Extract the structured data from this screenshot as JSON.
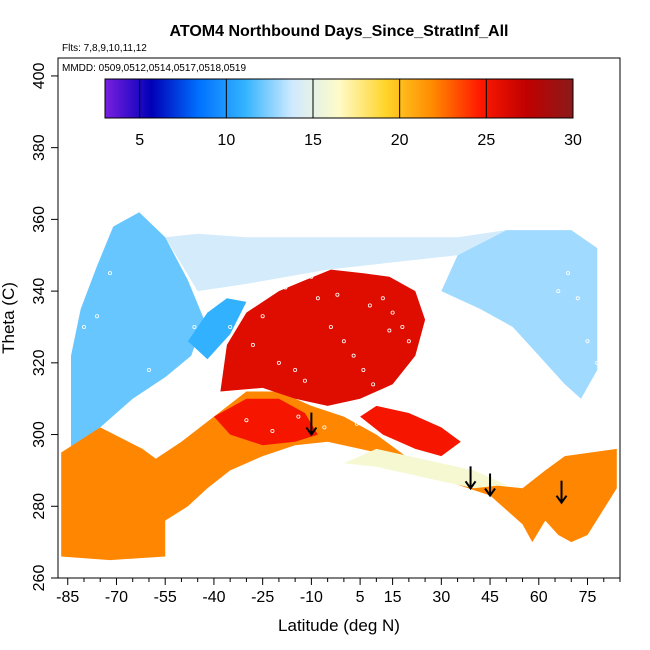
{
  "chart_data": {
    "type": "heatmap",
    "title": "ATOM4 Northbound Days_Since_StratInf_All",
    "subtitle_flights": "Flts: 7,8,9,10,11,12",
    "subtitle_dates": "MMDD: 0509,0512,0514,0517,0518,0519",
    "xlabel": "Latitude (deg N)",
    "ylabel": "Theta (C)",
    "xlim": [
      -88,
      85
    ],
    "ylim": [
      260,
      405
    ],
    "x_ticks": [
      -85,
      -70,
      -55,
      -40,
      -25,
      -10,
      5,
      15,
      30,
      45,
      60,
      75
    ],
    "x_tick_labels": [
      "-85",
      "-70",
      "-55",
      "-40",
      "-25",
      "-10",
      "5",
      "15",
      "30",
      "45",
      "60",
      "75"
    ],
    "y_ticks": [
      260,
      280,
      300,
      320,
      340,
      360,
      380,
      400
    ],
    "y_tick_labels": [
      "260",
      "280",
      "300",
      "320",
      "340",
      "360",
      "380",
      "400"
    ],
    "colorbar": {
      "range": [
        3,
        30
      ],
      "ticks": [
        5,
        10,
        15,
        20,
        25,
        30
      ],
      "tick_labels": [
        "5",
        "10",
        "15",
        "20",
        "25",
        "30"
      ],
      "colors": [
        "#7a1fe0",
        "#0000b8",
        "#0070ff",
        "#34b4ff",
        "#cfeaff",
        "#fffbc8",
        "#ffd42a",
        "#ff8a00",
        "#ff1a00",
        "#c00000",
        "#8b1a1a"
      ]
    },
    "arrows": [
      {
        "lat": -10,
        "theta": 300
      },
      {
        "lat": 39,
        "theta": 285
      },
      {
        "lat": 45,
        "theta": 283
      },
      {
        "lat": 67,
        "theta": 281
      }
    ],
    "regions": [
      {
        "name": "upper-left-blue",
        "value": 12,
        "points": [
          [
            -84,
            296
          ],
          [
            -84,
            322
          ],
          [
            -81,
            335
          ],
          [
            -76,
            347
          ],
          [
            -71,
            358
          ],
          [
            -63,
            362
          ],
          [
            -55,
            355
          ],
          [
            -48,
            343
          ],
          [
            -43,
            332
          ],
          [
            -47,
            322
          ],
          [
            -55,
            316
          ],
          [
            -65,
            310
          ],
          [
            -75,
            302
          ]
        ]
      },
      {
        "name": "upper-right-blue",
        "value": 13,
        "points": [
          [
            30,
            340
          ],
          [
            35,
            350
          ],
          [
            50,
            357
          ],
          [
            70,
            357
          ],
          [
            78,
            352
          ],
          [
            78,
            318
          ],
          [
            73,
            310
          ],
          [
            68,
            314
          ],
          [
            62,
            320
          ],
          [
            52,
            330
          ],
          [
            42,
            335
          ]
        ]
      },
      {
        "name": "top-band-light",
        "value": 14,
        "points": [
          [
            -55,
            355
          ],
          [
            -45,
            356
          ],
          [
            -30,
            355
          ],
          [
            0,
            355
          ],
          [
            35,
            355
          ],
          [
            50,
            357
          ],
          [
            35,
            350
          ],
          [
            -5,
            346
          ],
          [
            -30,
            342
          ],
          [
            -45,
            340
          ]
        ]
      },
      {
        "name": "left-low-orange",
        "value": 22,
        "points": [
          [
            -87,
            266
          ],
          [
            -87,
            295
          ],
          [
            -75,
            302
          ],
          [
            -62,
            296
          ],
          [
            -50,
            288
          ],
          [
            -42,
            285
          ],
          [
            -48,
            280
          ],
          [
            -55,
            276
          ],
          [
            -55,
            266
          ],
          [
            -72,
            265
          ]
        ]
      },
      {
        "name": "central-orange",
        "value": 22,
        "points": [
          [
            -60,
            292
          ],
          [
            -50,
            298
          ],
          [
            -40,
            305
          ],
          [
            -30,
            312
          ],
          [
            -20,
            312
          ],
          [
            -10,
            308
          ],
          [
            0,
            305
          ],
          [
            10,
            300
          ],
          [
            22,
            292
          ],
          [
            35,
            288
          ],
          [
            45,
            286
          ],
          [
            55,
            285
          ],
          [
            62,
            290
          ],
          [
            68,
            294
          ],
          [
            84,
            296
          ],
          [
            84,
            285
          ],
          [
            75,
            272
          ],
          [
            70,
            270
          ],
          [
            66,
            272
          ],
          [
            62,
            276
          ],
          [
            58,
            270
          ],
          [
            55,
            275
          ],
          [
            45,
            283
          ],
          [
            35,
            286
          ],
          [
            25,
            290
          ],
          [
            15,
            294
          ],
          [
            5,
            296
          ],
          [
            -5,
            298
          ],
          [
            -15,
            297
          ],
          [
            -25,
            294
          ],
          [
            -35,
            290
          ],
          [
            -42,
            285
          ],
          [
            -50,
            286
          ]
        ]
      },
      {
        "name": "upper-red",
        "value": 26,
        "points": [
          [
            -38,
            312
          ],
          [
            -36,
            325
          ],
          [
            -30,
            334
          ],
          [
            -20,
            340
          ],
          [
            -12,
            343
          ],
          [
            -4,
            346
          ],
          [
            6,
            345
          ],
          [
            14,
            344
          ],
          [
            22,
            340
          ],
          [
            25,
            332
          ],
          [
            22,
            322
          ],
          [
            15,
            314
          ],
          [
            5,
            310
          ],
          [
            -5,
            308
          ],
          [
            -15,
            310
          ],
          [
            -25,
            313
          ]
        ]
      },
      {
        "name": "lower-red-left",
        "value": 25,
        "points": [
          [
            -40,
            305
          ],
          [
            -35,
            300
          ],
          [
            -25,
            297
          ],
          [
            -15,
            298
          ],
          [
            -8,
            300
          ],
          [
            -12,
            306
          ],
          [
            -20,
            310
          ],
          [
            -30,
            310
          ]
        ]
      },
      {
        "name": "lower-red-right",
        "value": 25,
        "points": [
          [
            5,
            305
          ],
          [
            12,
            300
          ],
          [
            22,
            296
          ],
          [
            30,
            294
          ],
          [
            36,
            298
          ],
          [
            30,
            302
          ],
          [
            20,
            306
          ],
          [
            10,
            308
          ]
        ]
      },
      {
        "name": "mid-cyan-streak",
        "value": 11,
        "points": [
          [
            -48,
            326
          ],
          [
            -42,
            334
          ],
          [
            -36,
            338
          ],
          [
            -30,
            337
          ],
          [
            -35,
            328
          ],
          [
            -42,
            321
          ]
        ]
      },
      {
        "name": "tropical-cyan-gap",
        "value": 16,
        "points": [
          [
            0,
            292
          ],
          [
            10,
            291
          ],
          [
            20,
            289
          ],
          [
            30,
            287
          ],
          [
            40,
            285
          ],
          [
            50,
            286
          ],
          [
            40,
            290
          ],
          [
            25,
            293
          ],
          [
            10,
            296
          ]
        ]
      }
    ],
    "noise_points": [
      [
        -80,
        330
      ],
      [
        -76,
        333
      ],
      [
        -72,
        345
      ],
      [
        -60,
        318
      ],
      [
        -46,
        330
      ],
      [
        -35,
        330
      ],
      [
        -28,
        325
      ],
      [
        -20,
        320
      ],
      [
        -15,
        318
      ],
      [
        -12,
        315
      ],
      [
        -8,
        338
      ],
      [
        -4,
        330
      ],
      [
        0,
        326
      ],
      [
        3,
        322
      ],
      [
        6,
        318
      ],
      [
        9,
        314
      ],
      [
        12,
        338
      ],
      [
        15,
        334
      ],
      [
        18,
        330
      ],
      [
        20,
        326
      ],
      [
        25,
        324
      ],
      [
        28,
        318
      ],
      [
        32,
        320
      ],
      [
        36,
        322
      ],
      [
        40,
        319
      ],
      [
        44,
        316
      ],
      [
        48,
        312
      ],
      [
        52,
        322
      ],
      [
        55,
        318
      ],
      [
        58,
        314
      ],
      [
        60,
        310
      ],
      [
        63,
        308
      ],
      [
        66,
        340
      ],
      [
        69,
        345
      ],
      [
        72,
        338
      ],
      [
        75,
        326
      ],
      [
        78,
        320
      ],
      [
        -25,
        333
      ],
      [
        -18,
        341
      ],
      [
        -10,
        344
      ],
      [
        -2,
        339
      ],
      [
        8,
        336
      ],
      [
        14,
        329
      ],
      [
        22,
        311
      ],
      [
        -30,
        304
      ],
      [
        -22,
        301
      ],
      [
        -14,
        305
      ],
      [
        -6,
        302
      ],
      [
        4,
        303
      ]
    ]
  }
}
